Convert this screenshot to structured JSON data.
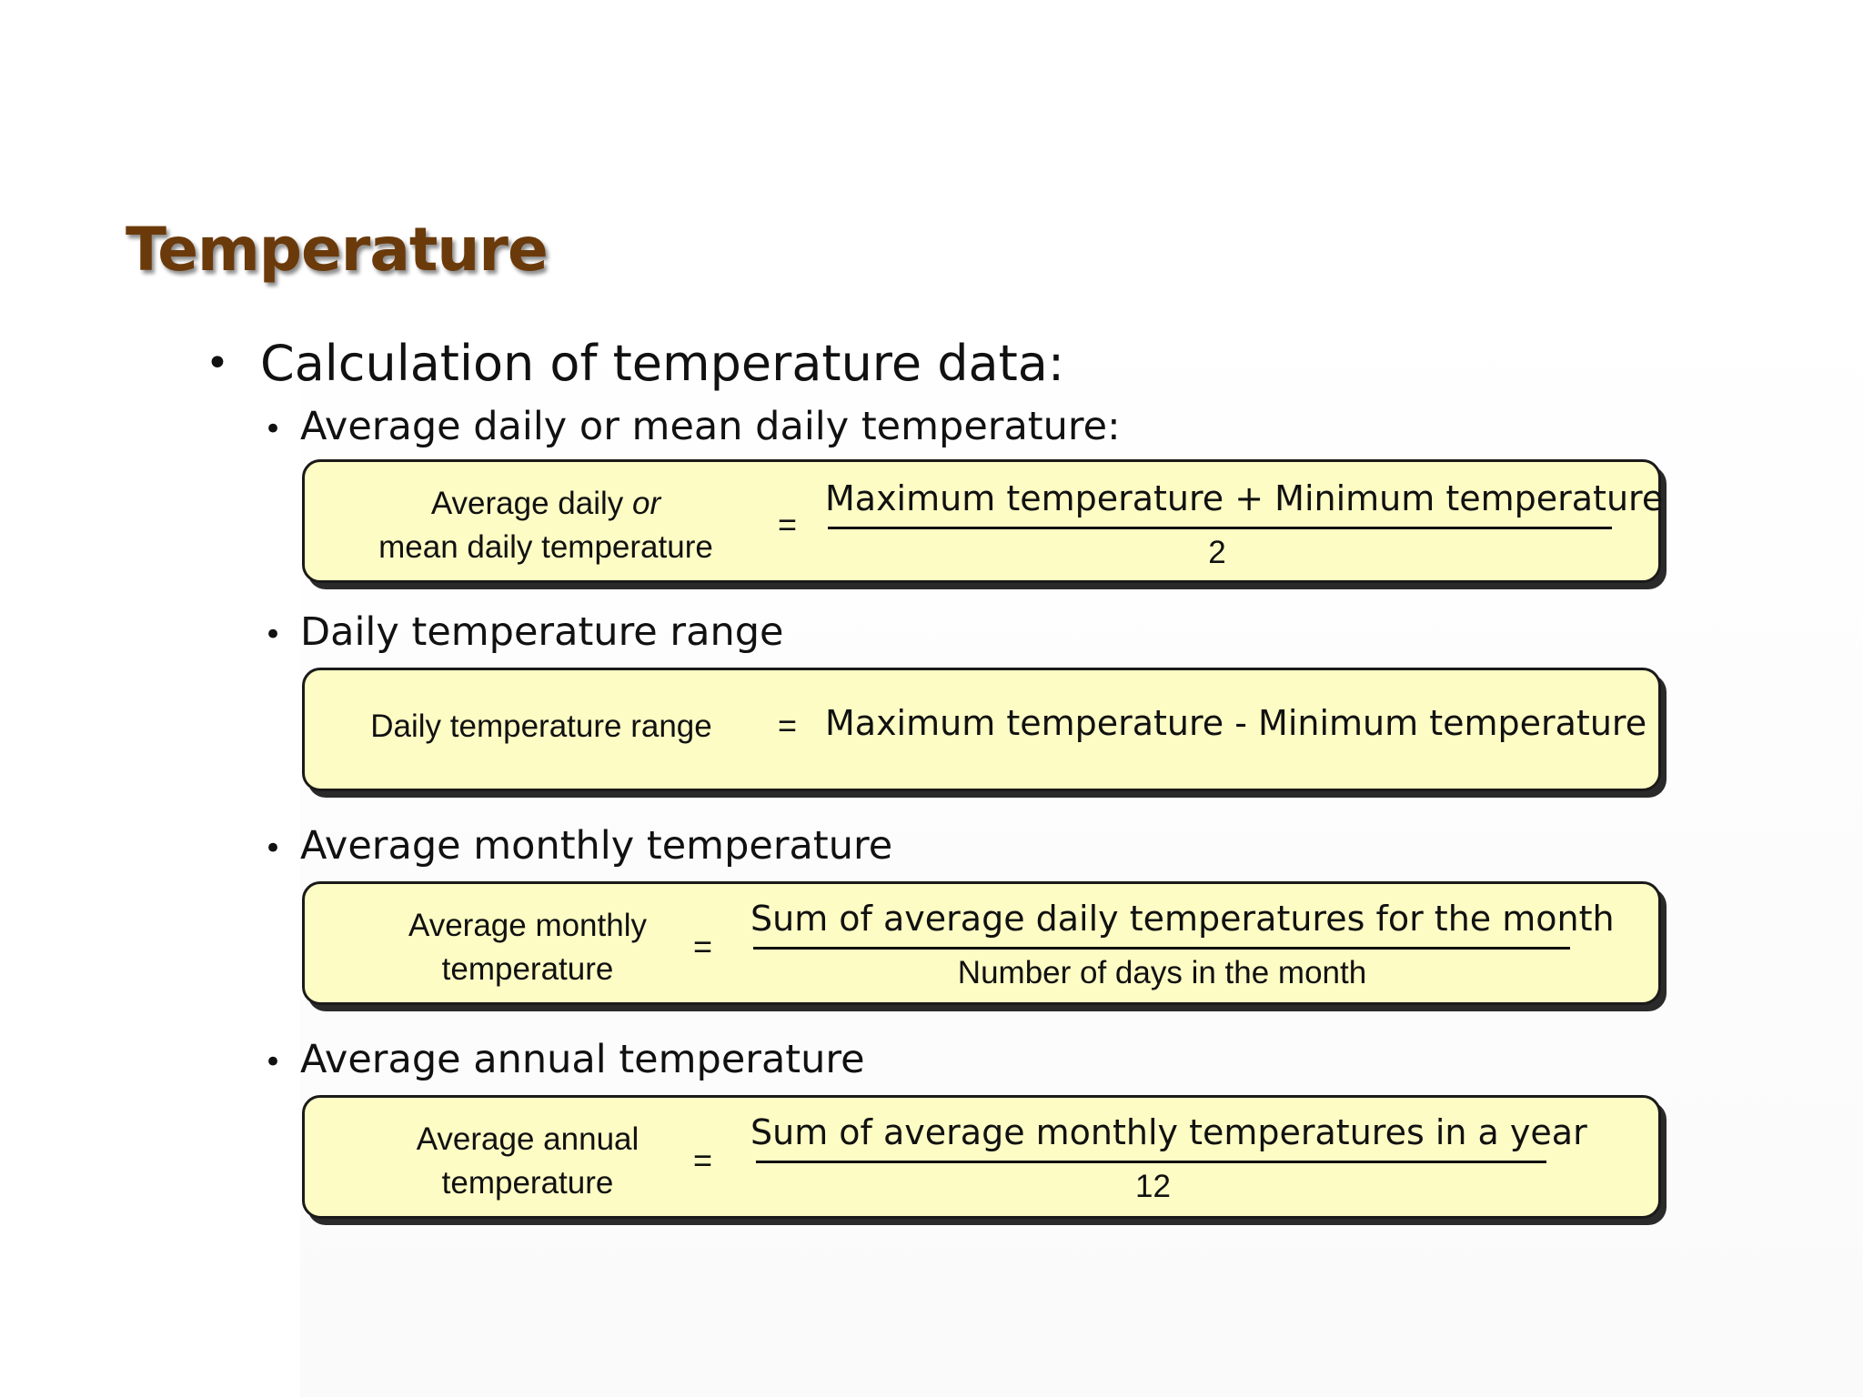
{
  "title": "Temperature",
  "bullet_main": "Calculation of temperature data:",
  "sections": [
    {
      "heading": "Average daily or mean daily temperature:",
      "lhs_line1_prefix": "Average daily ",
      "lhs_line1_italic": "or",
      "lhs_line2": "mean daily temperature",
      "equals": "=",
      "numerator": "Maximum temperature + Minimum temperature",
      "denominator": "2"
    },
    {
      "heading": "Daily temperature range",
      "lhs": "Daily temperature range",
      "equals": "=",
      "rhs": "Maximum temperature - Minimum temperature"
    },
    {
      "heading": "Average monthly temperature",
      "lhs_line1": "Average monthly",
      "lhs_line2": "temperature",
      "equals": "=",
      "numerator": "Sum of average daily temperatures for the month",
      "denominator": "Number of days in the month"
    },
    {
      "heading": "Average annual temperature",
      "lhs_line1": "Average annual",
      "lhs_line2": "temperature",
      "equals": "=",
      "numerator": "Sum of average monthly temperatures in a year",
      "denominator": "12"
    }
  ],
  "colors": {
    "title": "#6b3a0b",
    "box_fill": "#fdfcc4",
    "box_border": "#1a1a1a"
  }
}
